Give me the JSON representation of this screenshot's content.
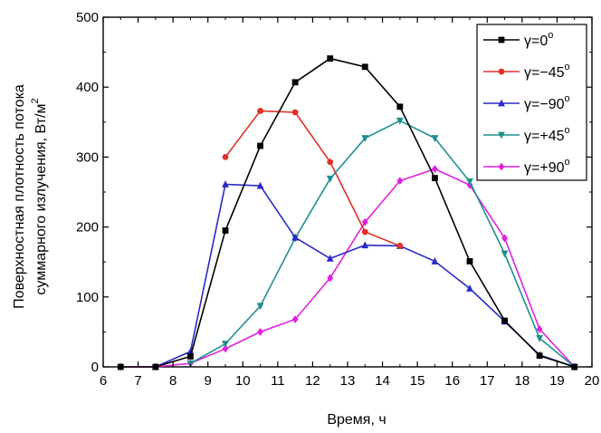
{
  "chart_data": {
    "type": "line",
    "xlabel": "Время, ч",
    "ylabel_line1": "Поверхностная плотность потока",
    "ylabel_line2": "суммарного излучения, Вт/м",
    "ylabel_sup": "2",
    "xlim": [
      6,
      20
    ],
    "ylim": [
      0,
      500
    ],
    "xticks": [
      6,
      7,
      8,
      9,
      10,
      11,
      12,
      13,
      14,
      15,
      16,
      17,
      18,
      19,
      20
    ],
    "yticks": [
      0,
      100,
      200,
      300,
      400,
      500
    ],
    "legend_position": "top-right",
    "series": [
      {
        "name": "γ=0°",
        "label_main": "γ=0",
        "label_sup": "o",
        "color": "#000000",
        "marker": "square",
        "x": [
          6.5,
          7.5,
          8.5,
          9.5,
          10.5,
          11.5,
          12.5,
          13.5,
          14.5,
          15.5,
          16.5,
          17.5,
          18.5,
          19.5
        ],
        "y": [
          0,
          0,
          15,
          195,
          316,
          407,
          441,
          429,
          372,
          270,
          151,
          66,
          16,
          0
        ]
      },
      {
        "name": "γ=−45°",
        "label_main": "γ=−45",
        "label_sup": "o",
        "color": "#e0302a",
        "marker": "circle",
        "x": [
          9.5,
          10.5,
          11.5,
          12.5,
          13.5,
          14.5
        ],
        "y": [
          300,
          366,
          364,
          293,
          193,
          173
        ]
      },
      {
        "name": "γ=−90°",
        "label_main": "γ=−90",
        "label_sup": "o",
        "color": "#2a2ac8",
        "marker": "triangle-up",
        "x": [
          7.5,
          8.5,
          9.5,
          10.5,
          11.5,
          12.5,
          13.5,
          14.5,
          15.5,
          16.5,
          17.5,
          18.5,
          19.5
        ],
        "y": [
          0,
          22,
          261,
          259,
          185,
          155,
          174,
          173,
          151,
          112,
          65,
          17,
          0
        ]
      },
      {
        "name": "γ=+45°",
        "label_main": "γ=+45",
        "label_sup": "o",
        "color": "#1f8f8f",
        "marker": "triangle-down",
        "x": [
          8.5,
          9.5,
          10.5,
          11.5,
          12.5,
          13.5,
          14.5,
          15.5,
          16.5,
          17.5,
          18.5,
          19.5
        ],
        "y": [
          5,
          33,
          87,
          184,
          269,
          327,
          352,
          327,
          265,
          162,
          41,
          0
        ]
      },
      {
        "name": "γ=+90°",
        "label_main": "γ=+90",
        "label_sup": "o",
        "color": "#e020e0",
        "marker": "diamond",
        "x": [
          6.5,
          7.5,
          8.5,
          9.5,
          10.5,
          11.5,
          12.5,
          13.5,
          14.5,
          15.5,
          16.5,
          17.5,
          18.5,
          19.5
        ],
        "y": [
          0,
          0,
          5,
          26,
          50,
          68,
          127,
          207,
          266,
          283,
          260,
          184,
          54,
          0
        ]
      }
    ]
  }
}
